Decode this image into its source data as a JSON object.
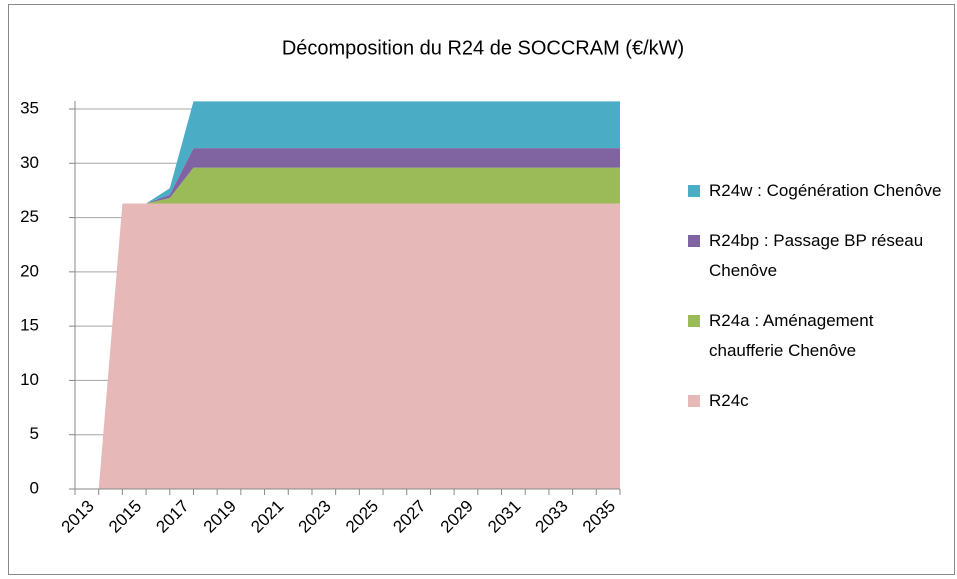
{
  "chart_data": {
    "type": "stacked_area",
    "title": "Décomposition du R24 de SOCCRAM (€/kW)",
    "categories": [
      2013,
      null,
      2015,
      null,
      2017,
      null,
      2019,
      null,
      2021,
      null,
      2023,
      null,
      2025,
      null,
      2027,
      null,
      2029,
      null,
      2031,
      null,
      2033,
      null,
      2035,
      null
    ],
    "series": [
      {
        "name": "R24c",
        "color": "#e6b9b8",
        "values": [
          0,
          0,
          26.3,
          26.3,
          26.3,
          26.3,
          26.3,
          26.3,
          26.3,
          26.3,
          26.3,
          26.3,
          26.3,
          26.3,
          26.3,
          26.3,
          26.3,
          26.3,
          26.3,
          26.3,
          26.3,
          26.3,
          26.3,
          26.3
        ]
      },
      {
        "name": "R24a : Aménagement chaufferie Chenôve",
        "color": "#9bbb59",
        "values": [
          0,
          0,
          0,
          0,
          0.5,
          3.3,
          3.3,
          3.3,
          3.3,
          3.3,
          3.3,
          3.3,
          3.3,
          3.3,
          3.3,
          3.3,
          3.3,
          3.3,
          3.3,
          3.3,
          3.3,
          3.3,
          3.3,
          3.3
        ]
      },
      {
        "name": "R24bp : Passage  BP réseau Chenôve",
        "color": "#8064a2",
        "values": [
          0,
          0,
          0,
          0,
          0.3,
          1.8,
          1.8,
          1.8,
          1.8,
          1.8,
          1.8,
          1.8,
          1.8,
          1.8,
          1.8,
          1.8,
          1.8,
          1.8,
          1.8,
          1.8,
          1.8,
          1.8,
          1.8,
          1.8
        ]
      },
      {
        "name": "R24w : Cogénération Chenôve",
        "color": "#4bacc6",
        "values": [
          0,
          0,
          0,
          0,
          0.6,
          4.3,
          4.3,
          4.3,
          4.3,
          4.3,
          4.3,
          4.3,
          4.3,
          4.3,
          4.3,
          4.3,
          4.3,
          4.3,
          4.3,
          4.3,
          4.3,
          4.3,
          4.3,
          4.3
        ]
      }
    ],
    "ylim": [
      0,
      35
    ],
    "yticks": [
      0,
      5,
      10,
      15,
      20,
      25,
      30,
      35
    ],
    "grid": true,
    "legend": "right"
  }
}
